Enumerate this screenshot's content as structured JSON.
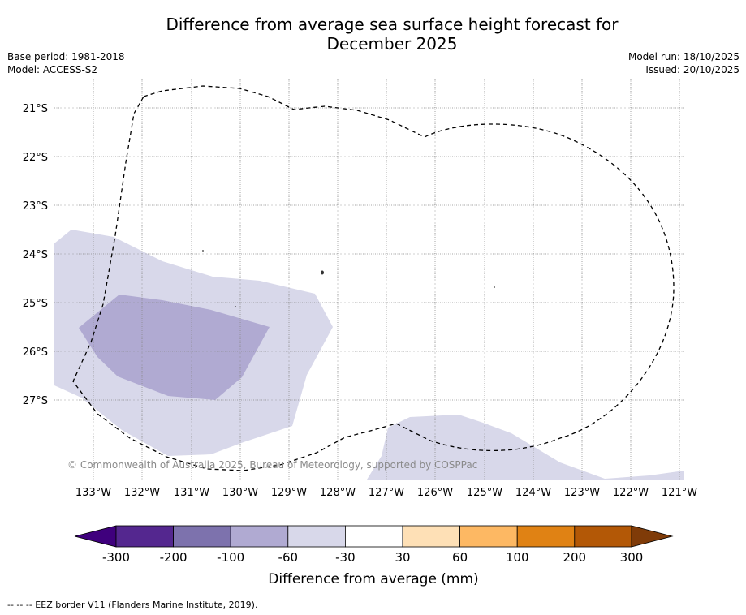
{
  "title_line1": "Difference from average sea surface height forecast for",
  "title_line2": "December 2025",
  "base_period": "Base period: 1981-2018",
  "model": "Model: ACCESS-S2",
  "model_run": "Model run: 18/10/2025",
  "issued": "Issued: 20/10/2025",
  "copyright": "© Commonwealth of Australia 2025, Bureau of Meteorology, supported by COSPPac",
  "footer_note": "-- -- -- EEZ border V11 (Flanders Marine Institute, 2019).",
  "lat_labels": [
    "21°S",
    "22°S",
    "23°S",
    "24°S",
    "25°S",
    "26°S",
    "27°S"
  ],
  "lon_labels": [
    "133°W",
    "132°W",
    "131°W",
    "130°W",
    "129°W",
    "128°W",
    "127°W",
    "126°W",
    "125°W",
    "124°W",
    "123°W",
    "122°W",
    "121°W"
  ],
  "colorbar": {
    "title": "Difference from average (mm)",
    "ticks": [
      "-300",
      "-200",
      "-100",
      "-60",
      "-30",
      "30",
      "60",
      "100",
      "200",
      "300"
    ],
    "colors": [
      "#3f007d",
      "#54278f",
      "#7d72ad",
      "#b0aad2",
      "#d8d8ea",
      "#ffffff",
      "#fee0b6",
      "#fdb863",
      "#e08214",
      "#b35806",
      "#7f3b08"
    ]
  },
  "chart_data": {
    "type": "heatmap",
    "title": "Difference from average sea surface height forecast for December 2025",
    "variable": "Difference from average (mm)",
    "lon_range": [
      "133°W",
      "121°W"
    ],
    "lat_range": [
      "21°S",
      "27°S"
    ],
    "levels": [
      -300,
      -200,
      -100,
      -60,
      -30,
      30,
      60,
      100,
      200,
      300
    ],
    "regions": [
      {
        "band": "-60 to -30",
        "area": "west of 128°W between about 23.5°S and 28°S"
      },
      {
        "band": "-100 to -60",
        "area": "around 130°W–132.5°W, 24.8°S to 27°S"
      },
      {
        "band": "-60 to -30",
        "area": "southeast, around 126°W–123°W south of 27.5°S"
      }
    ]
  }
}
